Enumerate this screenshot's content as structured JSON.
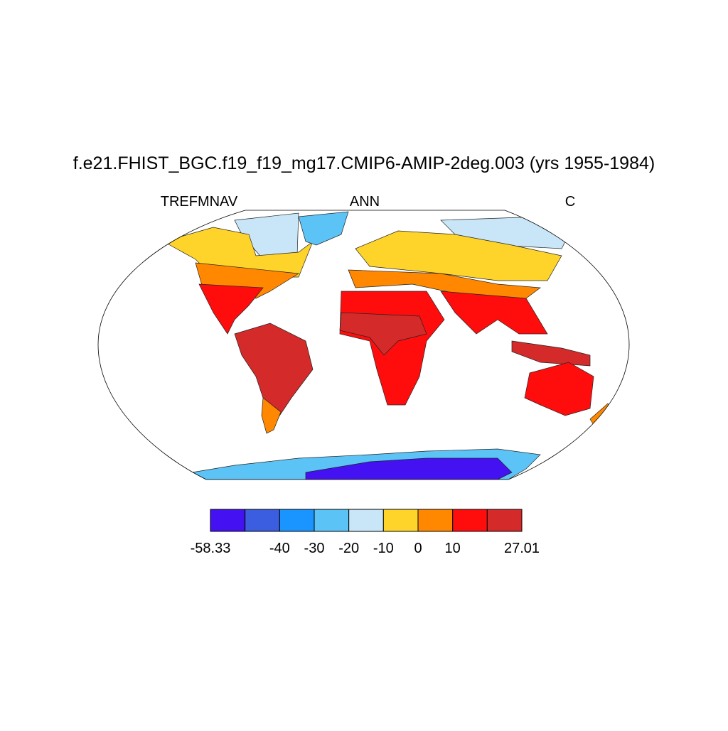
{
  "title": "f.e21.FHIST_BGC.f19_f19_mg17.CMIP6-AMIP-2deg.003 (yrs 1955-1984)",
  "left_string": "TREFMNAV",
  "center_string": "ANN",
  "right_string": "C",
  "colorbar": {
    "colors": [
      "#4411f2",
      "#3b5ee0",
      "#1a95ff",
      "#5bc3f5",
      "#c8e6f7",
      "#ffd42a",
      "#ff8800",
      "#ff0d0d",
      "#d42a2a"
    ],
    "boundaries": [
      -58.33,
      null,
      -40,
      -30,
      -20,
      -10,
      0,
      10,
      null,
      27.01
    ]
  }
}
